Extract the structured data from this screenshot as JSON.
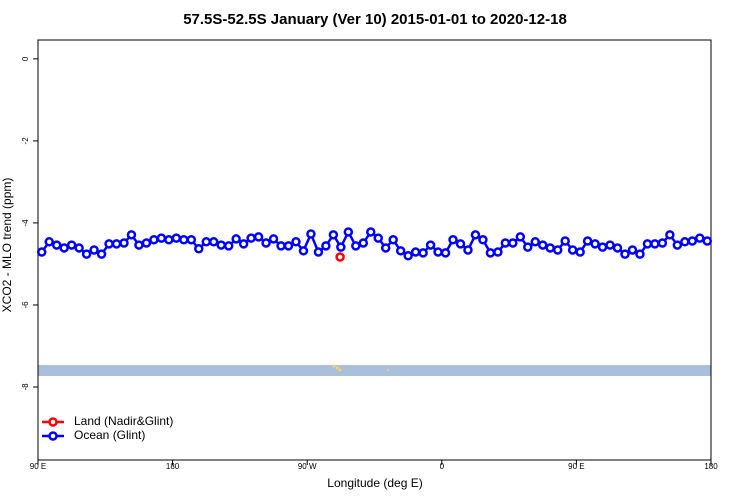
{
  "chart_data": {
    "type": "line",
    "title": "57.5S-52.5S January (Ver 10)   2015-01-01 to 2020-12-18",
    "xlabel": "Longitude (deg E)",
    "ylabel": "XCO2 - MLO trend (ppm)",
    "xlim": [
      90,
      540
    ],
    "ylim": [
      -9.78,
      0.46
    ],
    "xticks": [
      {
        "value": 90,
        "label": "90 E"
      },
      180,
      {
        "value": 270,
        "label": "90 W"
      },
      {
        "value": 360,
        "label": "0"
      },
      {
        "value": 450,
        "label": "90 E"
      },
      {
        "value": 540,
        "label": "180"
      }
    ],
    "yticks": [
      0,
      -2,
      -4,
      -6,
      -8
    ],
    "legend": "bottom-left",
    "series": [
      {
        "name": "Land (Nadir&Glint)",
        "color": "#ff0000",
        "x": [
          292
        ],
        "values": [
          -4.83
        ]
      },
      {
        "name": "Ocean (Glint)",
        "color": "#0000ff",
        "x": [
          92.5,
          97.5,
          102.5,
          107.5,
          112.5,
          117.5,
          122.5,
          127.5,
          132.5,
          137.5,
          142.5,
          147.5,
          152.5,
          157.5,
          162.5,
          167.5,
          172.5,
          177.5,
          182.5,
          187.5,
          192.5,
          197.5,
          202.5,
          207.5,
          212.5,
          217.5,
          222.5,
          227.5,
          232.5,
          237.5,
          242.5,
          247.5,
          252.5,
          257.5,
          262.5,
          267.5,
          272.5,
          277.5,
          282.5,
          287.5,
          292.5,
          297.5,
          302.5,
          307.5,
          312.5,
          317.5,
          322.5,
          327.5,
          332.5,
          337.5,
          342.5,
          347.5,
          352.5,
          357.5,
          362.5,
          367.5,
          372.5,
          377.5,
          382.5,
          387.5,
          392.5,
          397.5,
          402.5,
          407.5,
          412.5,
          417.5,
          422.5,
          427.5,
          432.5,
          437.5,
          442.5,
          447.5,
          452.5,
          457.5,
          462.5,
          467.5,
          472.5,
          477.5,
          482.5,
          487.5,
          492.5,
          497.5,
          502.5,
          507.5,
          512.5,
          517.5,
          522.5,
          527.5,
          532.5,
          537.5
        ],
        "values": [
          -4.71,
          -4.46,
          -4.54,
          -4.61,
          -4.54,
          -4.61,
          -4.76,
          -4.66,
          -4.76,
          -4.51,
          -4.51,
          -4.49,
          -4.29,
          -4.54,
          -4.49,
          -4.41,
          -4.37,
          -4.41,
          -4.37,
          -4.41,
          -4.41,
          -4.63,
          -4.46,
          -4.46,
          -4.54,
          -4.56,
          -4.39,
          -4.51,
          -4.37,
          -4.34,
          -4.49,
          -4.39,
          -4.56,
          -4.56,
          -4.46,
          -4.68,
          -4.27,
          -4.71,
          -4.56,
          -4.29,
          -4.59,
          -4.22,
          -4.56,
          -4.49,
          -4.22,
          -4.37,
          -4.61,
          -4.41,
          -4.68,
          -4.8,
          -4.71,
          -4.73,
          -4.54,
          -4.71,
          -4.73,
          -4.41,
          -4.51,
          -4.66,
          -4.29,
          -4.41,
          -4.73,
          -4.71,
          -4.49,
          -4.49,
          -4.34,
          -4.59,
          -4.46,
          -4.54,
          -4.61,
          -4.66,
          -4.44,
          -4.66,
          -4.71,
          -4.44,
          -4.51,
          -4.59,
          -4.54,
          -4.61,
          -4.76,
          -4.66,
          -4.76,
          -4.51,
          -4.51,
          -4.49,
          -4.29,
          -4.54,
          -4.46,
          -4.44,
          -4.37,
          -4.44
        ]
      }
    ]
  }
}
